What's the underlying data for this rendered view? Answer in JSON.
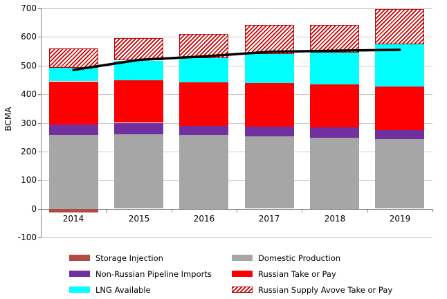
{
  "chart_data": {
    "type": "bar",
    "stacked": true,
    "title": "",
    "xlabel": "",
    "ylabel": "BCMA",
    "ylim": [
      -100,
      700
    ],
    "yticks": [
      700,
      600,
      500,
      400,
      300,
      200,
      100,
      0,
      -100
    ],
    "grid": true,
    "legend_position": "bottom",
    "categories": [
      "2014",
      "2015",
      "2016",
      "2017",
      "2018",
      "2019"
    ],
    "series": [
      {
        "name": "Storage Injection",
        "color": "#b04a45",
        "pattern": "solid",
        "values": [
          -12,
          0,
          0,
          0,
          0,
          0
        ]
      },
      {
        "name": "Domestic Production",
        "color": "#a6a6a6",
        "pattern": "solid",
        "values": [
          258,
          262,
          258,
          252,
          248,
          242
        ]
      },
      {
        "name": "Non-Russian Pipeline Imports",
        "color": "#7030a0",
        "pattern": "solid",
        "values": [
          37,
          38,
          32,
          36,
          36,
          34
        ]
      },
      {
        "name": "Russian Take or Pay",
        "color": "#ff0000",
        "pattern": "solid",
        "values": [
          150,
          150,
          152,
          152,
          151,
          152
        ]
      },
      {
        "name": "LNG Available",
        "color": "#00ffff",
        "pattern": "solid",
        "values": [
          47,
          67,
          85,
          101,
          110,
          147
        ]
      },
      {
        "name": "Russian Supply Avove Take or Pay",
        "color": "#cc0000",
        "pattern": "diagonal-hatch",
        "values": [
          68,
          78,
          84,
          102,
          96,
          123
        ]
      }
    ],
    "line_series": {
      "name": "demand-line",
      "color": "#000000",
      "stroke_width": 3.5,
      "values": [
        485,
        520,
        532,
        548,
        552,
        555
      ]
    }
  },
  "legend": {
    "column_series_indices": [
      [
        0,
        2,
        4
      ],
      [
        1,
        3,
        5
      ]
    ]
  },
  "style": {
    "axis_color": "#808080",
    "gridline_color": "#c9c9c9",
    "background": "#ffffff"
  }
}
